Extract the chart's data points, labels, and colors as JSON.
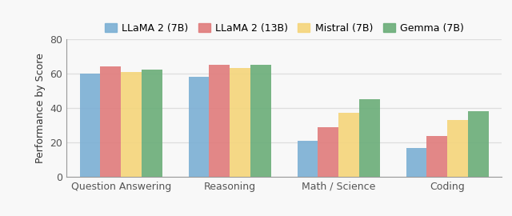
{
  "categories": [
    "Question Answering",
    "Reasoning",
    "Math / Science",
    "Coding"
  ],
  "series": {
    "LLaMA 2 (7B)": [
      60,
      58,
      21,
      17
    ],
    "LLaMA 2 (13B)": [
      64,
      65,
      29,
      24
    ],
    "Mistral (7B)": [
      61,
      63,
      37,
      33
    ],
    "Gemma (7B)": [
      62,
      65,
      45,
      38
    ]
  },
  "colors": {
    "LLaMA 2 (7B)": "#7bafd4",
    "LLaMA 2 (13B)": "#e07b7b",
    "Mistral (7B)": "#f5d57a",
    "Gemma (7B)": "#6aad78"
  },
  "ylabel": "Performance by Score",
  "ylim": [
    0,
    80
  ],
  "yticks": [
    0,
    20,
    40,
    60,
    80
  ],
  "bar_width": 0.19,
  "legend_labels": [
    "LLaMA 2 (7B)",
    "LLaMA 2 (13B)",
    "Mistral (7B)",
    "Gemma (7B)"
  ],
  "background_color": "#f8f8f8",
  "plot_bg_color": "#f8f8f8",
  "grid_color": "#dddddd",
  "axis_color": "#999999",
  "tick_fontsize": 9,
  "label_fontsize": 9,
  "legend_fontsize": 9
}
